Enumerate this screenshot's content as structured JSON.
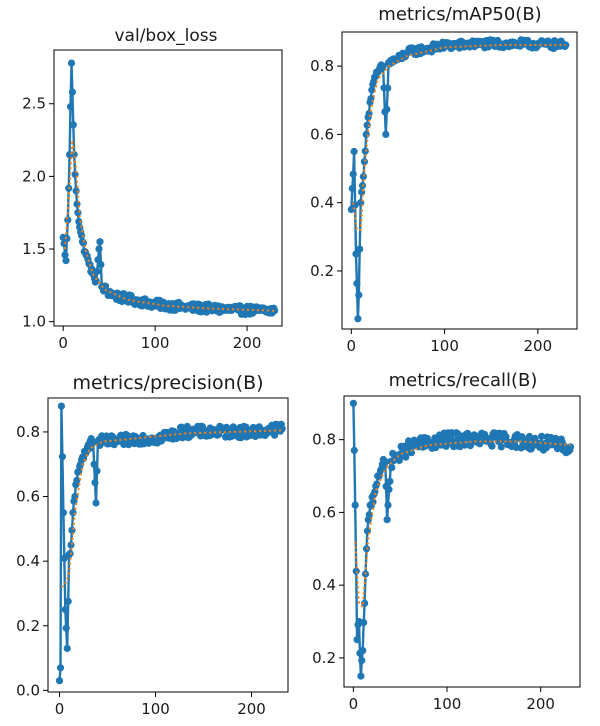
{
  "colors": {
    "series": "#1f77b4",
    "smooth": "#ff7f0e",
    "axes": "#000000",
    "background": "#ffffff"
  },
  "chart_data": [
    {
      "type": "line",
      "title": "val/box_loss",
      "xlabel": "",
      "ylabel": "",
      "xlim": [
        -10,
        238
      ],
      "ylim": [
        0.97,
        2.87
      ],
      "xticks": [
        0,
        100,
        200
      ],
      "xtick_labels": [
        "0",
        "100",
        "200"
      ],
      "yticks": [
        1.0,
        1.5,
        2.0,
        2.5
      ],
      "ytick_labels": [
        "1.0",
        "1.5",
        "2.0",
        "2.5"
      ],
      "grid": false,
      "legend": "none",
      "series": [
        {
          "role": "results",
          "marker": "circle",
          "anchors": [
            [
              0,
              1.58
            ],
            [
              3,
              1.42
            ],
            [
              5,
              1.7
            ],
            [
              7,
              2.15
            ],
            [
              9,
              2.78
            ],
            [
              10,
              2.58
            ],
            [
              12,
              2.15
            ],
            [
              14,
              1.9
            ],
            [
              16,
              1.75
            ],
            [
              18,
              1.65
            ],
            [
              21,
              1.55
            ],
            [
              24,
              1.48
            ],
            [
              28,
              1.4
            ],
            [
              32,
              1.33
            ],
            [
              36,
              1.28
            ],
            [
              40,
              1.55
            ],
            [
              42,
              1.24
            ],
            [
              50,
              1.2
            ],
            [
              60,
              1.17
            ],
            [
              75,
              1.15
            ],
            [
              100,
              1.12
            ],
            [
              130,
              1.1
            ],
            [
              160,
              1.09
            ],
            [
              190,
              1.08
            ],
            [
              230,
              1.075
            ]
          ],
          "noise": 0.03
        }
      ],
      "smooth_series": {
        "role": "smooth",
        "style": "dotted",
        "anchors": [
          [
            2,
            1.5
          ],
          [
            6,
            1.85
          ],
          [
            10,
            2.25
          ],
          [
            14,
            2.05
          ],
          [
            18,
            1.72
          ],
          [
            24,
            1.5
          ],
          [
            32,
            1.33
          ],
          [
            45,
            1.22
          ],
          [
            70,
            1.15
          ],
          [
            110,
            1.11
          ],
          [
            160,
            1.09
          ],
          [
            230,
            1.075
          ]
        ]
      }
    },
    {
      "type": "line",
      "title": "metrics/mAP50(B)",
      "xlabel": "",
      "ylabel": "",
      "xlim": [
        -10,
        242
      ],
      "ylim": [
        0.03,
        0.9
      ],
      "xticks": [
        0,
        100,
        200
      ],
      "xtick_labels": [
        "0",
        "100",
        "200"
      ],
      "yticks": [
        0.2,
        0.4,
        0.6,
        0.8
      ],
      "ytick_labels": [
        "0.2",
        "0.4",
        "0.6",
        "0.8"
      ],
      "grid": false,
      "legend": "none",
      "series": [
        {
          "role": "results",
          "marker": "circle",
          "anchors": [
            [
              0,
              0.38
            ],
            [
              3,
              0.55
            ],
            [
              5,
              0.25
            ],
            [
              7,
              0.06
            ],
            [
              8,
              0.13
            ],
            [
              10,
              0.4
            ],
            [
              12,
              0.45
            ],
            [
              14,
              0.52
            ],
            [
              16,
              0.6
            ],
            [
              18,
              0.65
            ],
            [
              22,
              0.73
            ],
            [
              26,
              0.77
            ],
            [
              30,
              0.79
            ],
            [
              34,
              0.8
            ],
            [
              37,
              0.6
            ],
            [
              40,
              0.81
            ],
            [
              50,
              0.82
            ],
            [
              60,
              0.84
            ],
            [
              80,
              0.85
            ],
            [
              100,
              0.86
            ],
            [
              140,
              0.865
            ],
            [
              180,
              0.865
            ],
            [
              230,
              0.862
            ]
          ],
          "noise": 0.012
        }
      ],
      "smooth_series": {
        "role": "smooth",
        "style": "dotted",
        "anchors": [
          [
            2,
            0.4
          ],
          [
            6,
            0.32
          ],
          [
            10,
            0.32
          ],
          [
            14,
            0.5
          ],
          [
            20,
            0.66
          ],
          [
            28,
            0.76
          ],
          [
            40,
            0.8
          ],
          [
            60,
            0.83
          ],
          [
            100,
            0.855
          ],
          [
            160,
            0.862
          ],
          [
            230,
            0.862
          ]
        ]
      }
    },
    {
      "type": "line",
      "title": "metrics/precision(B)",
      "xlabel": "",
      "ylabel": "",
      "xlim": [
        -12,
        238
      ],
      "ylim": [
        -0.005,
        0.905
      ],
      "xticks": [
        0,
        100,
        200
      ],
      "xtick_labels": [
        "0",
        "100",
        "200"
      ],
      "yticks": [
        0.0,
        0.2,
        0.4,
        0.6,
        0.8
      ],
      "ytick_labels": [
        "0.0",
        "0.2",
        "0.4",
        "0.6",
        "0.8"
      ],
      "grid": false,
      "legend": "none",
      "series": [
        {
          "role": "results",
          "marker": "circle",
          "anchors": [
            [
              0,
              0.03
            ],
            [
              1,
              0.07
            ],
            [
              2,
              0.88
            ],
            [
              4,
              0.55
            ],
            [
              6,
              0.25
            ],
            [
              8,
              0.13
            ],
            [
              10,
              0.42
            ],
            [
              12,
              0.45
            ],
            [
              14,
              0.55
            ],
            [
              16,
              0.6
            ],
            [
              18,
              0.65
            ],
            [
              22,
              0.7
            ],
            [
              26,
              0.74
            ],
            [
              30,
              0.76
            ],
            [
              35,
              0.77
            ],
            [
              38,
              0.58
            ],
            [
              40,
              0.77
            ],
            [
              60,
              0.77
            ],
            [
              80,
              0.78
            ],
            [
              100,
              0.78
            ],
            [
              130,
              0.8
            ],
            [
              160,
              0.8
            ],
            [
              200,
              0.8
            ],
            [
              232,
              0.81
            ]
          ],
          "noise": 0.018
        }
      ],
      "smooth_series": {
        "role": "smooth",
        "style": "dotted",
        "anchors": [
          [
            2,
            0.32
          ],
          [
            6,
            0.33
          ],
          [
            10,
            0.36
          ],
          [
            16,
            0.55
          ],
          [
            24,
            0.7
          ],
          [
            32,
            0.75
          ],
          [
            45,
            0.77
          ],
          [
            80,
            0.78
          ],
          [
            130,
            0.795
          ],
          [
            180,
            0.8
          ],
          [
            232,
            0.805
          ]
        ]
      }
    },
    {
      "type": "line",
      "title": "metrics/recall(B)",
      "xlabel": "",
      "ylabel": "",
      "xlim": [
        -10,
        242
      ],
      "ylim": [
        0.12,
        0.92
      ],
      "xticks": [
        0,
        100,
        200
      ],
      "xtick_labels": [
        "0",
        "100",
        "200"
      ],
      "yticks": [
        0.2,
        0.4,
        0.6,
        0.8
      ],
      "ytick_labels": [
        "0.2",
        "0.4",
        "0.6",
        "0.8"
      ],
      "grid": false,
      "legend": "none",
      "series": [
        {
          "role": "results",
          "marker": "circle",
          "anchors": [
            [
              0,
              0.9
            ],
            [
              2,
              0.62
            ],
            [
              4,
              0.25
            ],
            [
              6,
              0.3
            ],
            [
              8,
              0.15
            ],
            [
              10,
              0.22
            ],
            [
              12,
              0.35
            ],
            [
              14,
              0.5
            ],
            [
              16,
              0.58
            ],
            [
              18,
              0.62
            ],
            [
              22,
              0.65
            ],
            [
              26,
              0.7
            ],
            [
              30,
              0.72
            ],
            [
              34,
              0.74
            ],
            [
              36,
              0.58
            ],
            [
              40,
              0.74
            ],
            [
              50,
              0.76
            ],
            [
              60,
              0.78
            ],
            [
              80,
              0.79
            ],
            [
              100,
              0.8
            ],
            [
              130,
              0.8
            ],
            [
              160,
              0.8
            ],
            [
              200,
              0.79
            ],
            [
              232,
              0.78
            ]
          ],
          "noise": 0.02
        }
      ],
      "smooth_series": {
        "role": "smooth",
        "style": "dotted",
        "anchors": [
          [
            2,
            0.52
          ],
          [
            6,
            0.35
          ],
          [
            10,
            0.34
          ],
          [
            16,
            0.53
          ],
          [
            24,
            0.66
          ],
          [
            34,
            0.72
          ],
          [
            50,
            0.76
          ],
          [
            80,
            0.785
          ],
          [
            130,
            0.795
          ],
          [
            180,
            0.795
          ],
          [
            232,
            0.785
          ]
        ]
      }
    }
  ]
}
